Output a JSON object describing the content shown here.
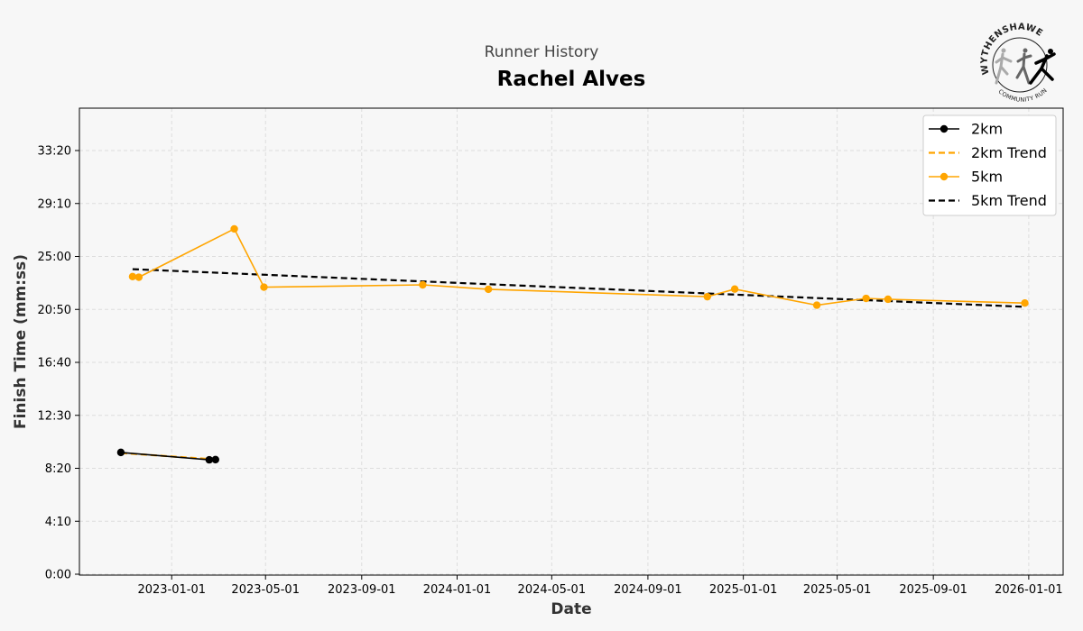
{
  "header": {
    "subtitle": "Runner History",
    "title": "Rachel Alves"
  },
  "logo": {
    "top_text": "WYTHENSHAWE",
    "bottom_text": "COMMUNITY RUN",
    "icon": "runners-logo-icon"
  },
  "chart_data": {
    "type": "line",
    "title": "Rachel Alves",
    "subtitle": "Runner History",
    "xlabel": "Date",
    "ylabel": "Finish Time (mm:ss)",
    "xlim": [
      "2022-09-05",
      "2026-02-14"
    ],
    "ylim_seconds": [
      0,
      2200
    ],
    "grid": true,
    "legend_position": "top-right",
    "x_ticks": [
      "2023-01-01",
      "2023-05-01",
      "2023-09-01",
      "2024-01-01",
      "2024-05-01",
      "2024-09-01",
      "2025-01-01",
      "2025-05-01",
      "2025-09-01",
      "2026-01-01"
    ],
    "y_ticks": [
      "0:00",
      "4:10",
      "8:20",
      "12:30",
      "16:40",
      "20:50",
      "25:00",
      "29:10",
      "33:20"
    ],
    "y_tick_seconds": [
      0,
      250,
      500,
      750,
      1000,
      1250,
      1500,
      1750,
      2000
    ],
    "series": [
      {
        "name": "2km",
        "color": "#000000",
        "style": "solid-markers",
        "points": [
          {
            "x": "2022-10-28",
            "y": 575
          },
          {
            "x": "2023-02-18",
            "y": 540
          },
          {
            "x": "2023-02-26",
            "y": 541
          }
        ]
      },
      {
        "name": "2km Trend",
        "color": "#ffa500",
        "style": "dashed",
        "points": [
          {
            "x": "2022-10-28",
            "y": 572
          },
          {
            "x": "2023-02-26",
            "y": 542
          }
        ]
      },
      {
        "name": "5km",
        "color": "#ffa500",
        "style": "solid-markers",
        "points": [
          {
            "x": "2022-11-12",
            "y": 1405
          },
          {
            "x": "2022-11-20",
            "y": 1402
          },
          {
            "x": "2023-03-22",
            "y": 1630
          },
          {
            "x": "2023-04-29",
            "y": 1355
          },
          {
            "x": "2023-11-18",
            "y": 1366
          },
          {
            "x": "2024-02-10",
            "y": 1345
          },
          {
            "x": "2024-11-16",
            "y": 1310
          },
          {
            "x": "2024-12-21",
            "y": 1346
          },
          {
            "x": "2025-04-05",
            "y": 1270
          },
          {
            "x": "2025-06-07",
            "y": 1302
          },
          {
            "x": "2025-07-05",
            "y": 1298
          },
          {
            "x": "2025-12-27",
            "y": 1280
          }
        ]
      },
      {
        "name": "5km Trend",
        "color": "#000000",
        "style": "dashed",
        "points": [
          {
            "x": "2022-11-12",
            "y": 1440
          },
          {
            "x": "2025-12-27",
            "y": 1262
          }
        ]
      }
    ]
  }
}
